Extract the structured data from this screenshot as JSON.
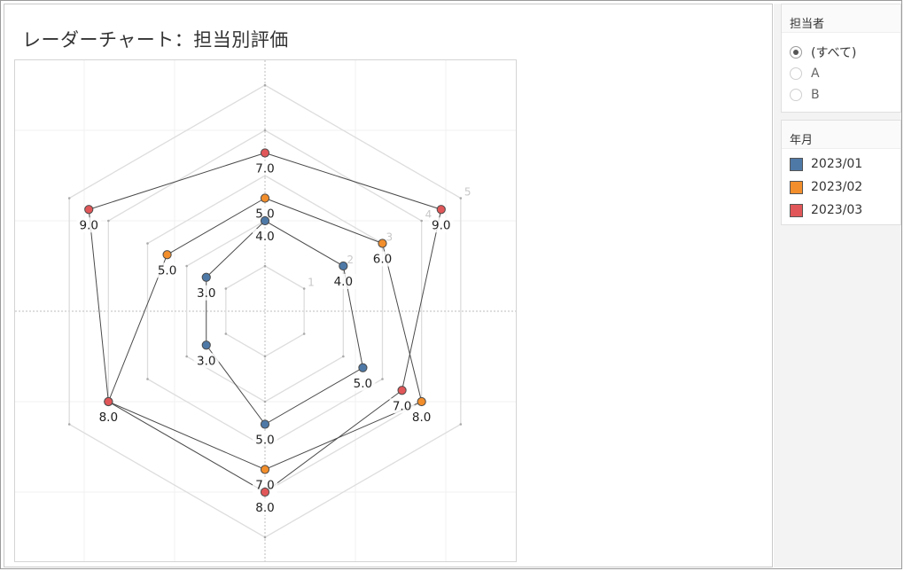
{
  "title": "レーダーチャート：担当別評価",
  "filter": {
    "title": "担当者",
    "options": [
      {
        "label": "(すべて)",
        "selected": true
      },
      {
        "label": "A",
        "selected": false
      },
      {
        "label": "B",
        "selected": false
      }
    ]
  },
  "legend": {
    "title": "年月",
    "items": [
      {
        "label": "2023/01",
        "color": "#4e79a7"
      },
      {
        "label": "2023/02",
        "color": "#f28e2b"
      },
      {
        "label": "2023/03",
        "color": "#e15759"
      }
    ]
  },
  "chart_data": {
    "type": "radar",
    "title": "レーダーチャート：担当別評価",
    "axes_count": 6,
    "ring_labels": [
      "1",
      "2",
      "3",
      "4",
      "5"
    ],
    "grid": true,
    "series": [
      {
        "name": "2023/01",
        "color": "#4e79a7",
        "values": [
          4.0,
          4.0,
          5.0,
          5.0,
          3.0,
          3.0
        ],
        "labels": [
          "4.0",
          "4.0",
          "5.0",
          "5.0",
          "3.0",
          "3.0"
        ]
      },
      {
        "name": "2023/02",
        "color": "#f28e2b",
        "values": [
          5.0,
          6.0,
          8.0,
          7.0,
          8.0,
          5.0
        ],
        "labels": [
          "5.0",
          "6.0",
          "8.0",
          "7.0",
          "8.0",
          "5.0"
        ]
      },
      {
        "name": "2023/03",
        "color": "#e15759",
        "values": [
          7.0,
          9.0,
          7.0,
          8.0,
          8.0,
          9.0
        ],
        "labels": [
          "7.0",
          "9.0",
          "7.0",
          "8.0",
          "8.0",
          "9.0"
        ]
      }
    ]
  }
}
